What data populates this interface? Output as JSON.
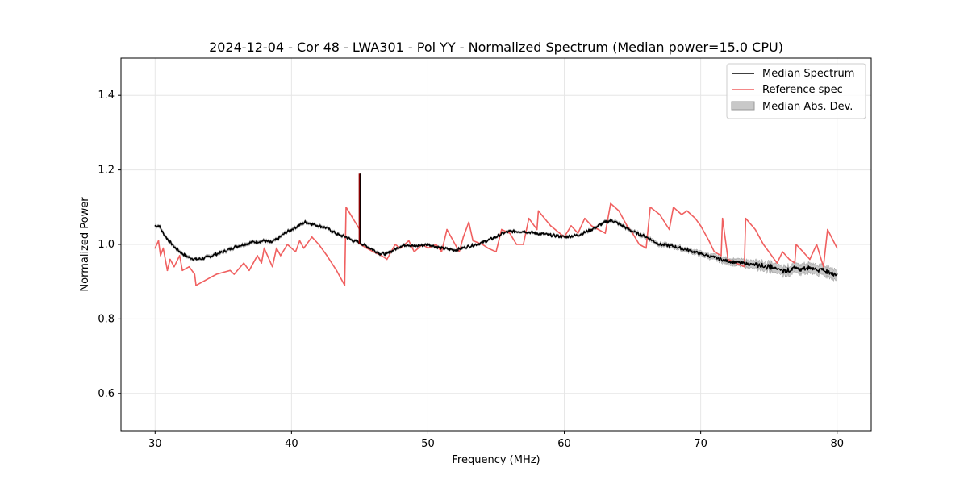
{
  "chart_data": {
    "type": "line",
    "title": "2024-12-04 - Cor 48 - LWA301 - Pol YY - Normalized Spectrum (Median power=15.0 CPU)",
    "xlabel": "Frequency (MHz)",
    "ylabel": "Normalized Power",
    "xlim": [
      27.5,
      82.5
    ],
    "ylim": [
      0.5,
      1.5
    ],
    "xticks": [
      30,
      40,
      50,
      60,
      70,
      80
    ],
    "yticks": [
      0.6,
      0.8,
      1.0,
      1.2,
      1.4
    ],
    "xtick_labels": [
      "30",
      "40",
      "50",
      "60",
      "70",
      "80"
    ],
    "ytick_labels": [
      "0.6",
      "0.8",
      "1.0",
      "1.2",
      "1.4"
    ],
    "grid": true,
    "legend_position": "top-right",
    "legend": [
      "Median Spectrum",
      "Reference spec",
      "Median Abs. Dev."
    ],
    "colors": {
      "median": "#000000",
      "reference": "#f06060",
      "mad_fill": "#c8c8c8",
      "mad_edge": "#999999",
      "spike": "#8b0000"
    },
    "series": [
      {
        "name": "Median Spectrum",
        "x": [
          30.0,
          30.3,
          30.6,
          31.0,
          31.5,
          32.0,
          32.5,
          33.0,
          33.5,
          34.0,
          35.0,
          36.0,
          37.0,
          38.0,
          38.5,
          39.0,
          39.5,
          40.0,
          40.5,
          41.0,
          41.5,
          42.0,
          42.5,
          43.0,
          43.5,
          44.0,
          44.5,
          45.0,
          45.5,
          46.0,
          46.5,
          47.0,
          47.5,
          48.0,
          48.5,
          49.0,
          50.0,
          51.0,
          52.0,
          53.0,
          54.0,
          55.0,
          55.5,
          56.0,
          57.0,
          58.0,
          59.0,
          60.0,
          61.0,
          62.0,
          63.0,
          63.5,
          64.0,
          64.5,
          65.0,
          66.0,
          67.0,
          68.0,
          69.0,
          70.0,
          71.0,
          72.0,
          73.0,
          74.0,
          75.0,
          76.0,
          77.0,
          78.0,
          79.0,
          80.0
        ],
        "values": [
          1.05,
          1.05,
          1.03,
          1.01,
          0.99,
          0.975,
          0.965,
          0.96,
          0.962,
          0.968,
          0.98,
          0.995,
          1.005,
          1.01,
          1.005,
          1.015,
          1.03,
          1.04,
          1.05,
          1.06,
          1.055,
          1.05,
          1.045,
          1.035,
          1.025,
          1.02,
          1.01,
          1.005,
          0.995,
          0.985,
          0.975,
          0.975,
          0.985,
          0.995,
          1.0,
          0.995,
          1.0,
          0.99,
          0.985,
          0.995,
          1.005,
          1.02,
          1.03,
          1.035,
          1.035,
          1.03,
          1.025,
          1.02,
          1.025,
          1.04,
          1.06,
          1.065,
          1.055,
          1.045,
          1.035,
          1.02,
          1.0,
          0.995,
          0.985,
          0.975,
          0.965,
          0.955,
          0.95,
          0.945,
          0.94,
          0.93,
          0.935,
          0.935,
          0.93,
          0.92
        ]
      },
      {
        "name": "Reference spec",
        "x": [
          30.0,
          30.25,
          30.4,
          30.6,
          30.9,
          31.1,
          31.4,
          31.8,
          32.0,
          32.5,
          32.9,
          33.0,
          33.5,
          34.0,
          34.5,
          35.0,
          35.5,
          35.8,
          36.5,
          36.9,
          37.5,
          37.8,
          38.0,
          38.6,
          38.9,
          39.2,
          39.7,
          40.3,
          40.6,
          40.9,
          41.5,
          42.0,
          42.6,
          43.3,
          43.9,
          44.0,
          45.0,
          45.05,
          45.5,
          46.0,
          46.6,
          47.0,
          47.6,
          48.0,
          48.6,
          49.0,
          49.6,
          50.0,
          50.6,
          51.0,
          51.4,
          52.0,
          52.3,
          52.6,
          53.0,
          53.3,
          54.0,
          54.4,
          55.0,
          55.4,
          56.0,
          56.5,
          57.0,
          57.4,
          58.0,
          58.1,
          59.0,
          60.0,
          60.5,
          61.0,
          61.5,
          62.0,
          62.5,
          63.0,
          63.4,
          64.0,
          64.6,
          65.0,
          65.5,
          66.0,
          66.3,
          67.0,
          67.7,
          68.0,
          68.6,
          69.0,
          69.6,
          70.0,
          70.6,
          71.0,
          71.5,
          71.6,
          72.0,
          72.6,
          73.2,
          73.3,
          74.0,
          74.6,
          75.0,
          75.6,
          76.0,
          76.5,
          76.9,
          77.0,
          77.5,
          78.0,
          78.5,
          79.0,
          79.3,
          80.0
        ],
        "values": [
          0.99,
          1.01,
          0.97,
          0.99,
          0.93,
          0.96,
          0.94,
          0.97,
          0.93,
          0.94,
          0.92,
          0.89,
          0.9,
          0.91,
          0.92,
          0.925,
          0.93,
          0.92,
          0.95,
          0.93,
          0.97,
          0.95,
          0.99,
          0.94,
          0.99,
          0.97,
          1.0,
          0.98,
          1.01,
          0.99,
          1.02,
          1.0,
          0.97,
          0.93,
          0.89,
          1.1,
          1.04,
          1.0,
          0.99,
          0.98,
          0.97,
          0.96,
          1.0,
          0.99,
          1.01,
          0.98,
          1.0,
          0.99,
          1.0,
          0.98,
          1.04,
          1.0,
          0.98,
          1.02,
          1.06,
          1.01,
          1.0,
          0.99,
          0.98,
          1.04,
          1.03,
          1.0,
          1.0,
          1.07,
          1.04,
          1.09,
          1.05,
          1.02,
          1.05,
          1.03,
          1.07,
          1.05,
          1.04,
          1.03,
          1.11,
          1.09,
          1.05,
          1.03,
          1.0,
          0.99,
          1.1,
          1.08,
          1.04,
          1.1,
          1.08,
          1.09,
          1.07,
          1.05,
          1.01,
          0.98,
          0.97,
          1.07,
          0.96,
          0.95,
          0.94,
          1.07,
          1.04,
          1.0,
          0.98,
          0.95,
          0.98,
          0.96,
          0.95,
          1.0,
          0.98,
          0.96,
          1.0,
          0.94,
          1.04,
          0.99
        ]
      }
    ],
    "spike": {
      "x": 45.0,
      "y0": 1.0,
      "y1": 1.19
    },
    "mad_halfwidth": {
      "x": [
        30,
        40,
        50,
        60,
        70,
        75,
        80
      ],
      "values": [
        0.004,
        0.004,
        0.003,
        0.003,
        0.006,
        0.012,
        0.014
      ]
    }
  }
}
